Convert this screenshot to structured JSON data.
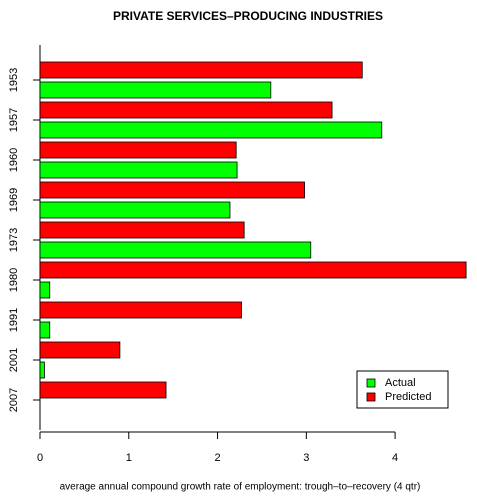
{
  "chart_data": {
    "type": "bar",
    "orientation": "horizontal",
    "title": "PRIVATE SERVICES–PRODUCING INDUSTRIES",
    "x_label": "average annual compound growth rate of employment: trough–to–recovery (4 qtr)",
    "categories": [
      "1953",
      "1957",
      "1960",
      "1969",
      "1973",
      "1980",
      "1991",
      "2001",
      "2007"
    ],
    "series": [
      {
        "name": "Predicted",
        "color": "#ff0000",
        "values": [
          3.63,
          3.29,
          2.21,
          2.98,
          2.3,
          4.8,
          2.27,
          0.9,
          1.42
        ]
      },
      {
        "name": "Actual",
        "color": "#00ff00",
        "values": [
          2.6,
          3.85,
          2.22,
          2.14,
          3.05,
          0.11,
          0.11,
          0.05,
          0
        ]
      }
    ],
    "xlim": [
      0,
      4.81
    ],
    "xticks": [
      0,
      1,
      2,
      3,
      4
    ],
    "legend": "bottom-right"
  }
}
